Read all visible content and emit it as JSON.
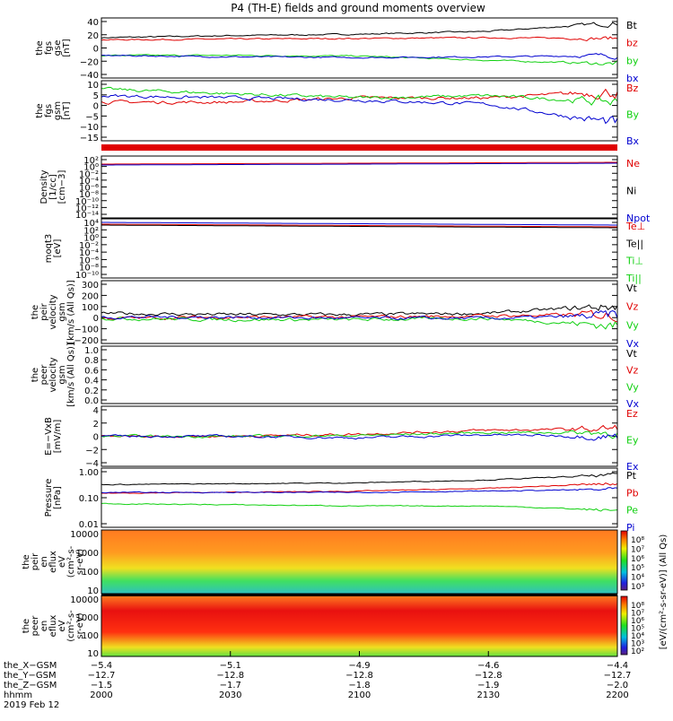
{
  "title": "P4 (TH-E) fields and ground moments overview",
  "colors": {
    "black": "#000000",
    "red": "#e00000",
    "green": "#10d010",
    "blue": "#0000d0"
  },
  "panels": [
    {
      "id": "fgs",
      "ylabel": [
        "the",
        "fgs",
        "gse",
        "[nT]"
      ],
      "yticks": [
        "40",
        "20",
        "0",
        "−20",
        "−40"
      ],
      "ylim": [
        -40,
        45
      ],
      "legend": [
        {
          "label": "Bt",
          "color": "black"
        },
        {
          "label": "bz",
          "color": "red"
        },
        {
          "label": "by",
          "color": "green"
        },
        {
          "label": "bx",
          "color": "blue"
        }
      ]
    },
    {
      "id": "fgs_gsm",
      "ylabel": [
        "the",
        "fgs",
        "gsm",
        "[nT]"
      ],
      "yticks": [
        "10",
        "5",
        "0",
        "−5",
        "−10",
        "−15"
      ],
      "ylim": [
        -18,
        10
      ],
      "legend": [
        {
          "label": "Bz",
          "color": "red"
        },
        {
          "label": "By",
          "color": "green"
        },
        {
          "label": "Bx",
          "color": "blue"
        }
      ]
    },
    {
      "id": "density",
      "ylabel": [
        "Density",
        "[1/cc]",
        "[cm−3]"
      ],
      "yticks": [
        "10²",
        "10⁰",
        "10⁻²",
        "10⁻⁴",
        "10⁻⁶",
        "10⁻⁸",
        "10⁻¹⁰",
        "10⁻¹²",
        "10⁻¹⁴"
      ],
      "legend": [
        {
          "label": "Ne",
          "color": "red"
        },
        {
          "label": "Ni",
          "color": "black"
        },
        {
          "label": "Npot",
          "color": "blue"
        }
      ]
    },
    {
      "id": "temp",
      "ylabel": [
        "moqt3",
        "[eV]"
      ],
      "yticks": [
        "10⁴",
        "10²",
        "10⁰",
        "10⁻²",
        "10⁻⁴",
        "10⁻⁶",
        "10⁻⁸",
        "10⁻¹⁰"
      ],
      "legend": [
        {
          "label": "Te⊥",
          "color": "red"
        },
        {
          "label": "Te||",
          "color": "black"
        },
        {
          "label": "Ti⊥",
          "color": "green"
        },
        {
          "label": "Ti||",
          "color": "green"
        }
      ]
    },
    {
      "id": "peir_vel",
      "ylabel": [
        "the",
        "peir",
        "velocity",
        "gsm",
        "[km/s (All Qs)]"
      ],
      "yticks": [
        "300",
        "200",
        "100",
        "0",
        "−100",
        "−200"
      ],
      "ylim": [
        -200,
        300
      ],
      "legend": [
        {
          "label": "Vt",
          "color": "black"
        },
        {
          "label": "Vz",
          "color": "red"
        },
        {
          "label": "Vy",
          "color": "green"
        },
        {
          "label": "Vx",
          "color": "blue"
        }
      ]
    },
    {
      "id": "peer_vel",
      "ylabel": [
        "the",
        "peer",
        "velocity",
        "gsm",
        "[km/s (All Qs)]"
      ],
      "yticks": [
        "1.0",
        "0.8",
        "0.6",
        "0.4",
        "0.2",
        "0.0"
      ],
      "ylim": [
        0,
        1
      ],
      "legend": [
        {
          "label": "Vt",
          "color": "black"
        },
        {
          "label": "Vz",
          "color": "red"
        },
        {
          "label": "Vy",
          "color": "green"
        },
        {
          "label": "Vx",
          "color": "blue"
        }
      ]
    },
    {
      "id": "efield",
      "ylabel": [
        "E=−VxB",
        "[mV/m]"
      ],
      "yticks": [
        "4",
        "2",
        "0",
        "−2",
        "−4"
      ],
      "ylim": [
        -4,
        4
      ],
      "legend": [
        {
          "label": "Ez",
          "color": "red"
        },
        {
          "label": "Ey",
          "color": "green"
        },
        {
          "label": "Ex",
          "color": "blue"
        }
      ]
    },
    {
      "id": "pressure",
      "ylabel": [
        "Pressure",
        "[nPa]"
      ],
      "yticks": [
        "1.00",
        "0.10",
        "0.01"
      ],
      "legend": [
        {
          "label": "Pt",
          "color": "black"
        },
        {
          "label": "Pb",
          "color": "red"
        },
        {
          "label": "Pe",
          "color": "green"
        },
        {
          "label": "Pi",
          "color": "blue"
        }
      ]
    },
    {
      "id": "peir_eflux",
      "ylabel": [
        "the",
        "peir",
        "en",
        "eflux",
        "eV",
        "(cm²-s-",
        "sr-eV)"
      ],
      "yticks": [
        "10000",
        "1000",
        "100",
        "10"
      ],
      "colorbar_ticks": [
        "10⁸",
        "10⁷",
        "10⁶",
        "10⁵",
        "10⁴",
        "10³"
      ]
    },
    {
      "id": "peer_eflux",
      "ylabel": [
        "the",
        "peer",
        "en",
        "eflux",
        "eV",
        "(cm²-s-",
        "sr-eV)"
      ],
      "yticks": [
        "10000",
        "1000",
        "100",
        "10"
      ],
      "colorbar_ticks": [
        "10⁸",
        "10⁷",
        "10⁶",
        "10⁵",
        "10⁴",
        "10³",
        "10²"
      ]
    }
  ],
  "colorbar_label": "[eV/(cm²-s-sr-eV)] (All Qs)",
  "xaxis": {
    "row_labels": [
      "the_X−GSM",
      "the_Y−GSM",
      "the_Z−GSM",
      "hhmm",
      "2019 Feb 12"
    ],
    "ticks": [
      {
        "x": "−5.4",
        "y": "−12.7",
        "z": "−1.5",
        "hhmm": "2000"
      },
      {
        "x": "−5.1",
        "y": "−12.8",
        "z": "−1.7",
        "hhmm": "2030"
      },
      {
        "x": "−4.9",
        "y": "−12.8",
        "z": "−1.8",
        "hhmm": "2100"
      },
      {
        "x": "−4.6",
        "y": "−12.8",
        "z": "−1.9",
        "hhmm": "2130"
      },
      {
        "x": "−4.4",
        "y": "−12.7",
        "z": "−2.0",
        "hhmm": "2200"
      }
    ]
  },
  "chart_data": [
    {
      "type": "line",
      "panel": "fgs",
      "x": [
        2000,
        2030,
        2100,
        2130,
        2200
      ],
      "ylim": [
        -40,
        45
      ],
      "series": [
        {
          "name": "Bt",
          "values": [
            17,
            20,
            22,
            26,
            38
          ]
        },
        {
          "name": "bz",
          "values": [
            14,
            15,
            16,
            17,
            16
          ]
        },
        {
          "name": "by",
          "values": [
            -8,
            -8,
            -9,
            -15,
            -20
          ]
        },
        {
          "name": "bx",
          "values": [
            -8,
            -10,
            -11,
            -10,
            -8
          ]
        }
      ]
    },
    {
      "type": "line",
      "panel": "fgs_gsm",
      "x": [
        2000,
        2030,
        2100,
        2130,
        2200
      ],
      "ylim": [
        -18,
        10
      ],
      "series": [
        {
          "name": "Bz",
          "values": [
            0,
            0,
            2,
            2,
            5
          ]
        },
        {
          "name": "By",
          "values": [
            6,
            4,
            2,
            3,
            0
          ]
        },
        {
          "name": "Bx",
          "values": [
            3,
            2,
            1,
            -1,
            -10
          ]
        }
      ]
    },
    {
      "type": "line",
      "panel": "peir_vel",
      "x": [
        2000,
        2030,
        2100,
        2130,
        2200
      ],
      "ylim": [
        -200,
        300
      ],
      "series": [
        {
          "name": "Vt",
          "values": [
            40,
            30,
            30,
            40,
            100
          ]
        },
        {
          "name": "Vz",
          "values": [
            0,
            10,
            10,
            20,
            30
          ]
        },
        {
          "name": "Vy",
          "values": [
            0,
            -10,
            -10,
            0,
            -60
          ]
        },
        {
          "name": "Vx",
          "values": [
            10,
            10,
            0,
            0,
            20
          ]
        }
      ]
    },
    {
      "type": "line",
      "panel": "efield",
      "x": [
        2000,
        2030,
        2100,
        2130,
        2200
      ],
      "ylim": [
        -4,
        4
      ],
      "series": [
        {
          "name": "Ez",
          "values": [
            0,
            0,
            0.3,
            0.8,
            1.0
          ]
        },
        {
          "name": "Ey",
          "values": [
            0,
            0,
            0.1,
            0.5,
            0.5
          ]
        },
        {
          "name": "Ex",
          "values": [
            0,
            0,
            -0.2,
            0.2,
            0
          ]
        }
      ]
    },
    {
      "type": "line",
      "panel": "pressure",
      "x": [
        2000,
        2030,
        2100,
        2130,
        2200
      ],
      "yscale": "log",
      "series": [
        {
          "name": "Pt",
          "values": [
            0.32,
            0.35,
            0.38,
            0.5,
            0.8
          ]
        },
        {
          "name": "Pb",
          "values": [
            0.14,
            0.15,
            0.17,
            0.22,
            0.35
          ]
        },
        {
          "name": "Pe",
          "values": [
            0.05,
            0.045,
            0.04,
            0.04,
            0.025
          ]
        },
        {
          "name": "Pi",
          "values": [
            0.15,
            0.15,
            0.15,
            0.17,
            0.2
          ]
        }
      ]
    },
    {
      "type": "heatmap",
      "panel": "peir_eflux",
      "yscale": "log",
      "ylim": [
        5,
        20000
      ]
    },
    {
      "type": "heatmap",
      "panel": "peer_eflux",
      "yscale": "log",
      "ylim": [
        5,
        20000
      ]
    }
  ]
}
